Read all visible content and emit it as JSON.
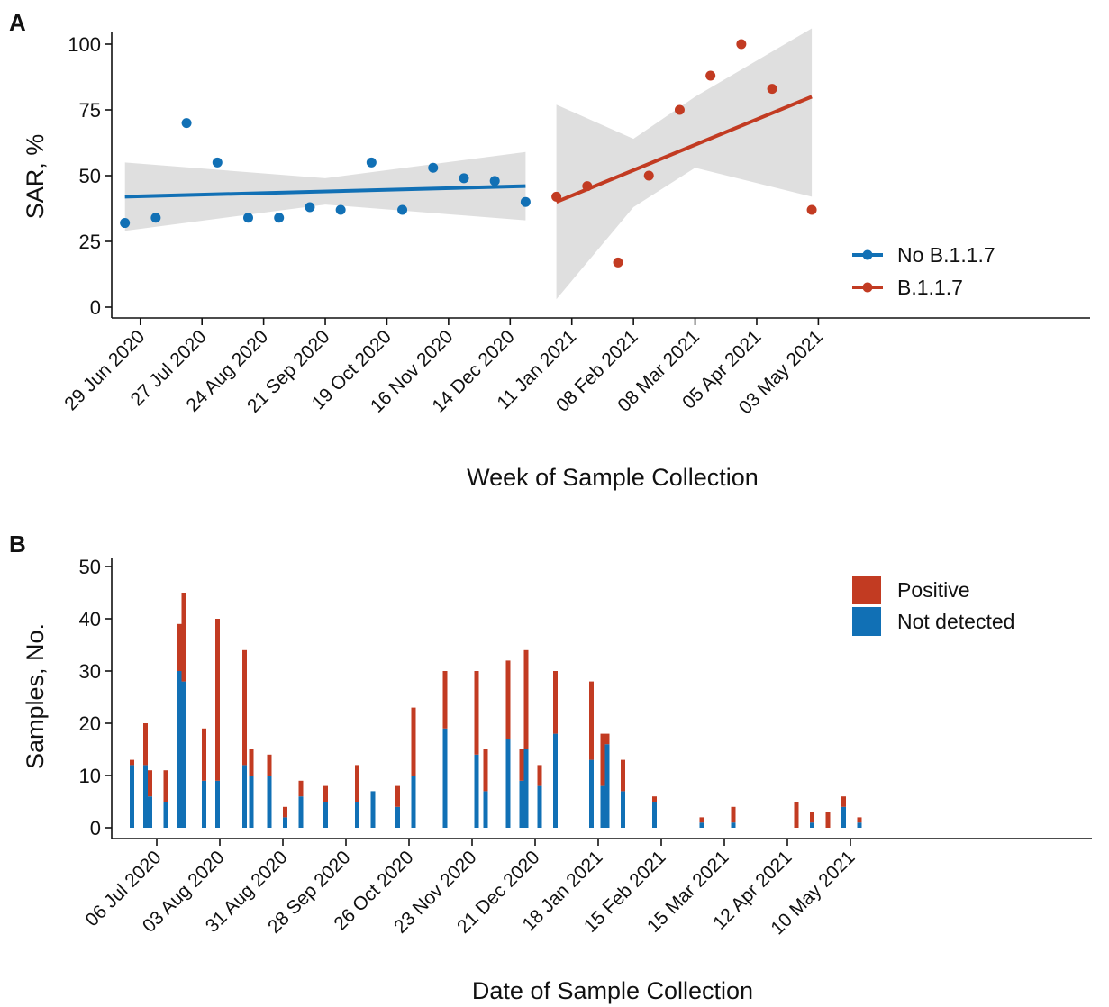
{
  "chart_data": [
    {
      "panel": "A",
      "type": "scatter",
      "xlabel": "Week of Sample Collection",
      "ylabel": "SAR, %",
      "ylim": [
        0,
        100
      ],
      "yticks": [
        0,
        25,
        50,
        75,
        100
      ],
      "x_tick_labels": [
        "29 Jun 2020",
        "27 Jul 2020",
        "24 Aug 2020",
        "21 Sep 2020",
        "19 Oct 2020",
        "16 Nov 2020",
        "14 Dec 2020",
        "11 Jan 2021",
        "08 Feb 2021",
        "08 Mar 2021",
        "05 Apr 2021",
        "03 May 2021"
      ],
      "grid": false,
      "legend_position": "inside-bottom-right",
      "series": [
        {
          "name": "No B.1.1.7",
          "color": "#1170B5",
          "points": [
            {
              "x": "2020-06-22",
              "y": 32
            },
            {
              "x": "2020-07-06",
              "y": 34
            },
            {
              "x": "2020-07-20",
              "y": 70
            },
            {
              "x": "2020-08-03",
              "y": 55
            },
            {
              "x": "2020-08-17",
              "y": 34
            },
            {
              "x": "2020-08-31",
              "y": 34
            },
            {
              "x": "2020-09-14",
              "y": 38
            },
            {
              "x": "2020-09-28",
              "y": 37
            },
            {
              "x": "2020-10-12",
              "y": 55
            },
            {
              "x": "2020-10-26",
              "y": 37
            },
            {
              "x": "2020-11-09",
              "y": 53
            },
            {
              "x": "2020-11-23",
              "y": 49
            },
            {
              "x": "2020-12-07",
              "y": 48
            },
            {
              "x": "2020-12-21",
              "y": 40
            }
          ],
          "trend": {
            "start": {
              "x": "2020-06-22",
              "y": 42
            },
            "end": {
              "x": "2020-12-21",
              "y": 46
            }
          },
          "confidence_band": [
            {
              "x": "2020-06-22",
              "lower": 29,
              "upper": 55
            },
            {
              "x": "2020-09-21",
              "lower": 39,
              "upper": 49
            },
            {
              "x": "2020-12-21",
              "lower": 33,
              "upper": 59
            }
          ]
        },
        {
          "name": "B.1.1.7",
          "color": "#C23B22",
          "points": [
            {
              "x": "2021-01-04",
              "y": 42
            },
            {
              "x": "2021-01-18",
              "y": 46
            },
            {
              "x": "2021-02-01",
              "y": 17
            },
            {
              "x": "2021-02-15",
              "y": 50
            },
            {
              "x": "2021-03-01",
              "y": 75
            },
            {
              "x": "2021-03-15",
              "y": 88
            },
            {
              "x": "2021-03-29",
              "y": 100
            },
            {
              "x": "2021-04-12",
              "y": 83
            },
            {
              "x": "2021-04-30",
              "y": 37
            }
          ],
          "trend": {
            "start": {
              "x": "2021-01-04",
              "y": 40
            },
            "end": {
              "x": "2021-04-30",
              "y": 80
            }
          },
          "confidence_band": [
            {
              "x": "2021-01-04",
              "lower": 3,
              "upper": 77
            },
            {
              "x": "2021-02-08",
              "lower": 38,
              "upper": 64
            },
            {
              "x": "2021-03-08",
              "lower": 53,
              "upper": 80
            },
            {
              "x": "2021-04-30",
              "lower": 42,
              "upper": 106
            }
          ]
        }
      ]
    },
    {
      "panel": "B",
      "type": "bar",
      "stacked": true,
      "xlabel": "Date of Sample Collection",
      "ylabel": "Samples, No.",
      "ylim": [
        0,
        50
      ],
      "yticks": [
        0,
        10,
        20,
        30,
        40,
        50
      ],
      "x_tick_labels": [
        "06 Jul 2020",
        "03 Aug 2020",
        "31 Aug 2020",
        "28 Sep 2020",
        "26 Oct 2020",
        "23 Nov 2020",
        "21 Dec 2020",
        "18 Jan 2021",
        "15 Feb 2021",
        "15 Mar 2021",
        "12 Apr 2021",
        "10 May 2021"
      ],
      "grid": false,
      "legend_position": "inside-top-right",
      "series": [
        {
          "name": "Positive",
          "color": "#C23B22"
        },
        {
          "name": "Not detected",
          "color": "#1170B5"
        }
      ],
      "bars": [
        {
          "date": "2020-06-25",
          "not_detected": 12,
          "positive": 1
        },
        {
          "date": "2020-07-01",
          "not_detected": 12,
          "positive": 8
        },
        {
          "date": "2020-07-03",
          "not_detected": 6,
          "positive": 5
        },
        {
          "date": "2020-07-10",
          "not_detected": 5,
          "positive": 6
        },
        {
          "date": "2020-07-16",
          "not_detected": 30,
          "positive": 9
        },
        {
          "date": "2020-07-18",
          "not_detected": 28,
          "positive": 17
        },
        {
          "date": "2020-07-27",
          "not_detected": 9,
          "positive": 10
        },
        {
          "date": "2020-08-02",
          "not_detected": 9,
          "positive": 31
        },
        {
          "date": "2020-08-14",
          "not_detected": 12,
          "positive": 22
        },
        {
          "date": "2020-08-17",
          "not_detected": 10,
          "positive": 5
        },
        {
          "date": "2020-08-25",
          "not_detected": 10,
          "positive": 4
        },
        {
          "date": "2020-09-01",
          "not_detected": 2,
          "positive": 2
        },
        {
          "date": "2020-09-08",
          "not_detected": 6,
          "positive": 3
        },
        {
          "date": "2020-09-19",
          "not_detected": 5,
          "positive": 3
        },
        {
          "date": "2020-10-03",
          "not_detected": 5,
          "positive": 7
        },
        {
          "date": "2020-10-10",
          "not_detected": 7,
          "positive": 0
        },
        {
          "date": "2020-10-21",
          "not_detected": 4,
          "positive": 4
        },
        {
          "date": "2020-10-28",
          "not_detected": 10,
          "positive": 13
        },
        {
          "date": "2020-11-11",
          "not_detected": 19,
          "positive": 11
        },
        {
          "date": "2020-11-25",
          "not_detected": 14,
          "positive": 16
        },
        {
          "date": "2020-11-29",
          "not_detected": 7,
          "positive": 8
        },
        {
          "date": "2020-12-09",
          "not_detected": 17,
          "positive": 15
        },
        {
          "date": "2020-12-15",
          "not_detected": 9,
          "positive": 6
        },
        {
          "date": "2020-12-17",
          "not_detected": 15,
          "positive": 19
        },
        {
          "date": "2020-12-23",
          "not_detected": 8,
          "positive": 4
        },
        {
          "date": "2020-12-30",
          "not_detected": 18,
          "positive": 12
        },
        {
          "date": "2021-01-15",
          "not_detected": 13,
          "positive": 15
        },
        {
          "date": "2021-01-20",
          "not_detected": 8,
          "positive": 10
        },
        {
          "date": "2021-01-22",
          "not_detected": 16,
          "positive": 2
        },
        {
          "date": "2021-01-29",
          "not_detected": 7,
          "positive": 6
        },
        {
          "date": "2021-02-12",
          "not_detected": 5,
          "positive": 1
        },
        {
          "date": "2021-03-05",
          "not_detected": 1,
          "positive": 1
        },
        {
          "date": "2021-03-19",
          "not_detected": 1,
          "positive": 3
        },
        {
          "date": "2021-04-16",
          "not_detected": 0,
          "positive": 5
        },
        {
          "date": "2021-04-23",
          "not_detected": 1,
          "positive": 2
        },
        {
          "date": "2021-04-30",
          "not_detected": 0,
          "positive": 3
        },
        {
          "date": "2021-05-07",
          "not_detected": 4,
          "positive": 2
        },
        {
          "date": "2021-05-14",
          "not_detected": 1,
          "positive": 1
        }
      ]
    }
  ]
}
